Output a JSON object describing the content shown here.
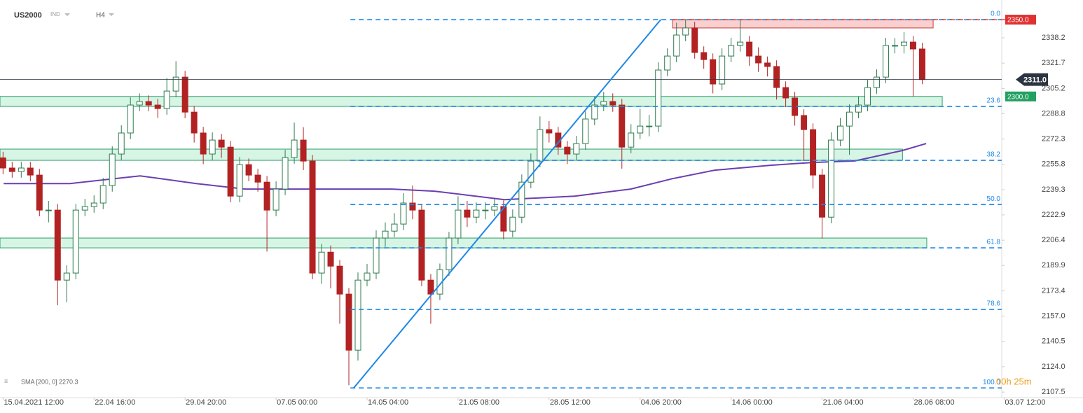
{
  "chart_data": {
    "type": "candlestick",
    "title": "US2000",
    "market": "IND",
    "timeframe": "H4",
    "up_color": "#2f7d4f",
    "down_color": "#b22222",
    "x": [
      1,
      4,
      7,
      10,
      13,
      16,
      19,
      22,
      25,
      28,
      31,
      34,
      37,
      40,
      43,
      46,
      49,
      52,
      55,
      58,
      61,
      64,
      67,
      70,
      73,
      76,
      79,
      82,
      85,
      88,
      91,
      94,
      97,
      100,
      103,
      106,
      109,
      112,
      115,
      118,
      121,
      124,
      127,
      130,
      133,
      136,
      139,
      142,
      145,
      148,
      151,
      154,
      157,
      160,
      163,
      166,
      169,
      172,
      175,
      178,
      181,
      184,
      187,
      190,
      193,
      196,
      199,
      202,
      205,
      208,
      211,
      214,
      217,
      220,
      223,
      226,
      229,
      232,
      235,
      238,
      241,
      244,
      247,
      250,
      253,
      256,
      259,
      262,
      265,
      268,
      271,
      274,
      277,
      280,
      283,
      286,
      289,
      292,
      295,
      298,
      301,
      304
    ],
    "open": [
      2260.0,
      2253.4,
      2251.1,
      2253.4,
      2248.8,
      2226.0,
      2226.0,
      2180.4,
      2185.0,
      2226.0,
      2228.3,
      2230.6,
      2242.0,
      2262.5,
      2276.2,
      2294.4,
      2296.7,
      2294.4,
      2292.1,
      2303.5,
      2312.6,
      2289.8,
      2276.2,
      2262.5,
      2271.6,
      2267.0,
      2235.1,
      2255.6,
      2248.8,
      2244.2,
      2226.0,
      2239.7,
      2260.2,
      2271.6,
      2257.9,
      2185.0,
      2198.6,
      2189.5,
      2171.3,
      2134.8,
      2180.4,
      2185.0,
      2207.8,
      2212.3,
      2216.9,
      2230.6,
      2226.0,
      2180.4,
      2171.3,
      2187.2,
      2207.8,
      2226.0,
      2221.4,
      2226.0,
      2226.0,
      2228.3,
      2212.3,
      2221.4,
      2244.2,
      2257.9,
      2278.4,
      2276.2,
      2267.0,
      2262.5,
      2269.3,
      2285.3,
      2294.4,
      2296.7,
      2294.4,
      2267.0,
      2276.2,
      2280.7,
      2280.7,
      2317.2,
      2326.3,
      2340.0,
      2344.6,
      2328.6,
      2324.0,
      2308.1,
      2326.3,
      2333.2,
      2335.4,
      2326.3,
      2321.8,
      2319.5,
      2305.8,
      2299.0,
      2287.6,
      2278.4,
      2248.8,
      2221.4,
      2271.6,
      2280.7,
      2289.8,
      2294.4,
      2305.8,
      2312.6,
      2333.2,
      2333.2,
      2335.4,
      2330.9
    ],
    "high": [
      2264.0,
      2257.4,
      2257.4,
      2257.4,
      2252.8,
      2232.0,
      2230.0,
      2190.0,
      2230.0,
      2233.3,
      2235.6,
      2247.0,
      2267.5,
      2281.2,
      2299.4,
      2302.0,
      2300.7,
      2298.4,
      2312.0,
      2323.0,
      2316.6,
      2293.8,
      2280.2,
      2276.6,
      2275.6,
      2271.0,
      2260.6,
      2259.6,
      2252.8,
      2248.2,
      2244.7,
      2265.2,
      2283.0,
      2280.0,
      2261.9,
      2204.0,
      2203.0,
      2193.5,
      2175.3,
      2185.4,
      2191.0,
      2212.8,
      2218.0,
      2224.0,
      2237.0,
      2242.0,
      2230.0,
      2184.4,
      2191.2,
      2211.8,
      2235.0,
      2232.0,
      2231.0,
      2231.0,
      2233.3,
      2232.3,
      2226.4,
      2249.2,
      2262.9,
      2287.0,
      2284.0,
      2280.2,
      2271.0,
      2274.3,
      2290.3,
      2300.0,
      2303.0,
      2302.0,
      2298.4,
      2282.0,
      2292.0,
      2288.0,
      2322.2,
      2331.3,
      2348.0,
      2350.0,
      2348.6,
      2332.6,
      2328.0,
      2331.3,
      2338.2,
      2350.0,
      2339.4,
      2332.0,
      2326.0,
      2323.5,
      2309.8,
      2303.0,
      2291.6,
      2282.4,
      2252.8,
      2276.6,
      2286.0,
      2294.8,
      2300.0,
      2310.8,
      2317.6,
      2338.2,
      2338.0,
      2342.0,
      2339.4,
      2334.9
    ],
    "low": [
      2249.4,
      2247.1,
      2247.1,
      2244.8,
      2222.0,
      2218.0,
      2164.0,
      2166.0,
      2181.0,
      2222.0,
      2224.3,
      2226.6,
      2238.0,
      2258.5,
      2272.2,
      2290.4,
      2290.4,
      2286.0,
      2288.1,
      2299.5,
      2285.8,
      2270.0,
      2256.0,
      2258.5,
      2260.0,
      2231.1,
      2231.1,
      2244.8,
      2238.0,
      2199.0,
      2222.0,
      2235.7,
      2256.2,
      2252.0,
      2181.0,
      2178.0,
      2175.0,
      2152.0,
      2112.0,
      2128.0,
      2176.4,
      2181.0,
      2202.0,
      2208.3,
      2212.9,
      2220.0,
      2176.4,
      2152.0,
      2167.3,
      2183.2,
      2203.8,
      2215.0,
      2217.4,
      2220.0,
      2222.0,
      2207.0,
      2208.3,
      2217.4,
      2240.2,
      2253.9,
      2270.0,
      2262.0,
      2256.0,
      2258.5,
      2265.3,
      2281.3,
      2290.4,
      2290.0,
      2253.0,
      2263.0,
      2272.2,
      2274.0,
      2276.7,
      2313.2,
      2322.3,
      2336.0,
      2324.6,
      2318.0,
      2302.0,
      2304.1,
      2322.3,
      2329.2,
      2320.0,
      2316.0,
      2313.0,
      2298.0,
      2293.0,
      2281.0,
      2258.0,
      2240.0,
      2207.5,
      2217.4,
      2267.6,
      2262.0,
      2285.8,
      2290.4,
      2301.8,
      2308.6,
      2328.0,
      2328.0,
      2300.0,
      2308.0
    ],
    "close": [
      2253.4,
      2251.1,
      2253.4,
      2248.8,
      2226.0,
      2226.0,
      2180.4,
      2185.0,
      2226.0,
      2228.3,
      2230.6,
      2242.0,
      2262.5,
      2276.2,
      2294.4,
      2296.7,
      2294.4,
      2292.1,
      2303.5,
      2312.6,
      2289.8,
      2276.2,
      2262.5,
      2271.6,
      2267.0,
      2235.1,
      2255.6,
      2248.8,
      2244.2,
      2226.0,
      2239.7,
      2260.2,
      2271.6,
      2257.9,
      2185.0,
      2198.6,
      2189.5,
      2171.3,
      2134.8,
      2180.4,
      2185.0,
      2207.8,
      2212.3,
      2216.9,
      2230.6,
      2226.0,
      2180.4,
      2171.3,
      2187.2,
      2207.8,
      2226.0,
      2221.4,
      2226.0,
      2226.0,
      2228.3,
      2212.3,
      2221.4,
      2244.2,
      2257.9,
      2278.4,
      2276.2,
      2267.0,
      2262.5,
      2269.3,
      2285.3,
      2294.4,
      2296.7,
      2294.4,
      2267.0,
      2276.2,
      2280.7,
      2280.7,
      2317.2,
      2326.3,
      2340.0,
      2344.6,
      2328.6,
      2324.0,
      2308.1,
      2326.3,
      2333.2,
      2335.4,
      2326.3,
      2321.8,
      2319.5,
      2305.8,
      2299.0,
      2287.6,
      2278.4,
      2248.8,
      2221.4,
      2271.6,
      2280.7,
      2289.8,
      2294.4,
      2305.8,
      2312.6,
      2333.2,
      2333.2,
      2335.4,
      2330.9,
      2311.0
    ],
    "xlim": [
      0,
      357
    ],
    "ylim": [
      2103.9,
      2362.8
    ],
    "yticks": [
      2338.2,
      2321.7,
      2305.2,
      2288.8,
      2272.3,
      2255.8,
      2239.3,
      2222.9,
      2206.4,
      2189.9,
      2173.4,
      {
        "value": 2157,
        "label": "2157.0"
      },
      2140.5,
      {
        "value": 2124,
        "label": "2124.0"
      },
      2107.5
    ],
    "xticks": [
      {
        "value": 1,
        "label": "15.04.2021 12:00"
      },
      {
        "value": 31,
        "label": "22.04 16:00"
      },
      {
        "value": 61,
        "label": "29.04 20:00"
      },
      {
        "value": 91,
        "label": "07.05 00:00"
      },
      {
        "value": 121,
        "label": "14.05 04:00"
      },
      {
        "value": 151,
        "label": "21.05 08:00"
      },
      {
        "value": 181,
        "label": "28.05 12:00"
      },
      {
        "value": 211,
        "label": "04.06 20:00"
      },
      {
        "value": 241,
        "label": "14.06 00:00"
      },
      {
        "value": 271,
        "label": "21.06 04:00"
      },
      {
        "value": 301,
        "label": "28.06 08:00"
      },
      {
        "value": 331,
        "label": "03.07 12:00"
      }
    ],
    "sma": {
      "label": "SMA [200, 0] 2270.3",
      "color": "#6a3fb0",
      "x": [
        1.2,
        23.1,
        46.2,
        64.7,
        80.8,
        110.9,
        129.3,
        143.2,
        166.3,
        189.4,
        207.9,
        221.7,
        235.6,
        254.0,
        267.9,
        281.8,
        297.5,
        305.3
      ],
      "values": [
        2243.3,
        2243.3,
        2248.3,
        2243.3,
        2239.7,
        2239.7,
        2239.7,
        2238.3,
        2232.8,
        2235.1,
        2239.7,
        2246.5,
        2252.0,
        2255.2,
        2257.0,
        2258.0,
        2264.8,
        2269.3
      ]
    },
    "fib_color": "#1e88e5",
    "fib_x": [
      115.5,
      330.2
    ],
    "fib_levels": [
      {
        "label": "0.0",
        "value": 2350.0
      },
      {
        "label": "23.6",
        "value": 2293.5
      },
      {
        "label": "38.2",
        "value": 2258.4
      },
      {
        "label": "50.0",
        "value": 2229.6
      },
      {
        "label": "61.8",
        "value": 2201.4
      },
      {
        "label": "78.6",
        "value": 2161.3
      },
      {
        "label": "100.0",
        "value": 2110.2
      }
    ],
    "trendline": {
      "x": [
        116.6,
        217.8
      ],
      "values": [
        2110.2,
        2350.0
      ]
    },
    "zones": [
      {
        "x": [
          0,
          310.6
        ],
        "range": [
          2293.5,
          2300.0
        ],
        "color": "#2e9e6a",
        "fill": "#d6f5e5"
      },
      {
        "x": [
          0,
          297.5
        ],
        "range": [
          2258.4,
          2265.7
        ],
        "color": "#2e9e6a",
        "fill": "#d6f5e5"
      },
      {
        "x": [
          0,
          305.5
        ],
        "range": [
          2201.4,
          2207.8
        ],
        "color": "#2e9e6a",
        "fill": "#d6f5e5"
      },
      {
        "x": [
          221.7,
          307.6
        ],
        "range": [
          2344.6,
          2350.0
        ],
        "color": "#d33a3a",
        "fill": "#f9d0d0"
      }
    ],
    "price_labels": [
      {
        "value": 2350,
        "label": "2350.0",
        "color": "#e03030"
      },
      {
        "value": 2300,
        "label": "2300.0",
        "color": "#22a060"
      },
      {
        "value": 2311,
        "label": "2311.0",
        "color": "#2b3440"
      }
    ],
    "current_price": 2311,
    "countdown": "00h 25m"
  }
}
